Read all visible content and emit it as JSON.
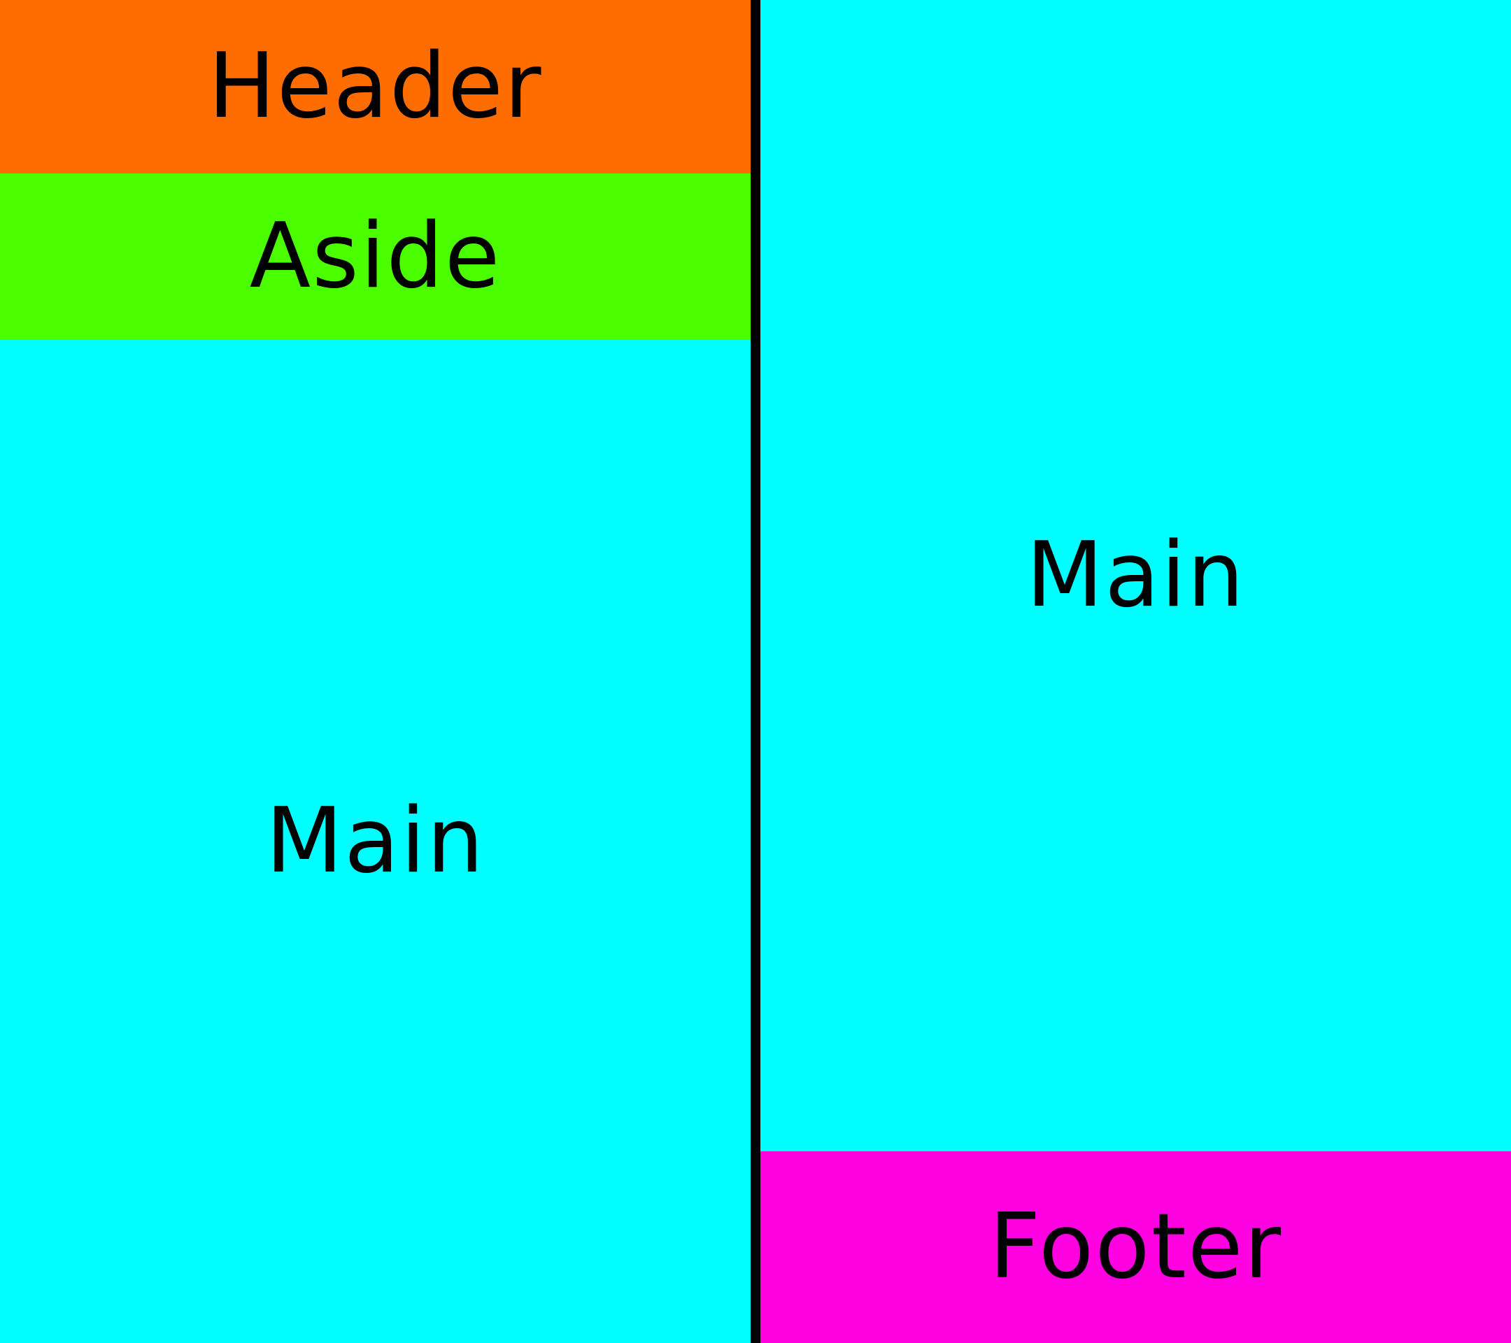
{
  "left_layout": {
    "header": {
      "label": "Header",
      "color": "#ff6d00"
    },
    "aside": {
      "label": "Aside",
      "color": "#4cff00"
    },
    "main": {
      "label": "Main",
      "color": "#00ffff"
    }
  },
  "divider": {
    "color": "#000000"
  },
  "right_layout": {
    "main": {
      "label": "Main",
      "color": "#00ffff"
    },
    "footer": {
      "label": "Footer",
      "color": "#ff00e0"
    }
  }
}
